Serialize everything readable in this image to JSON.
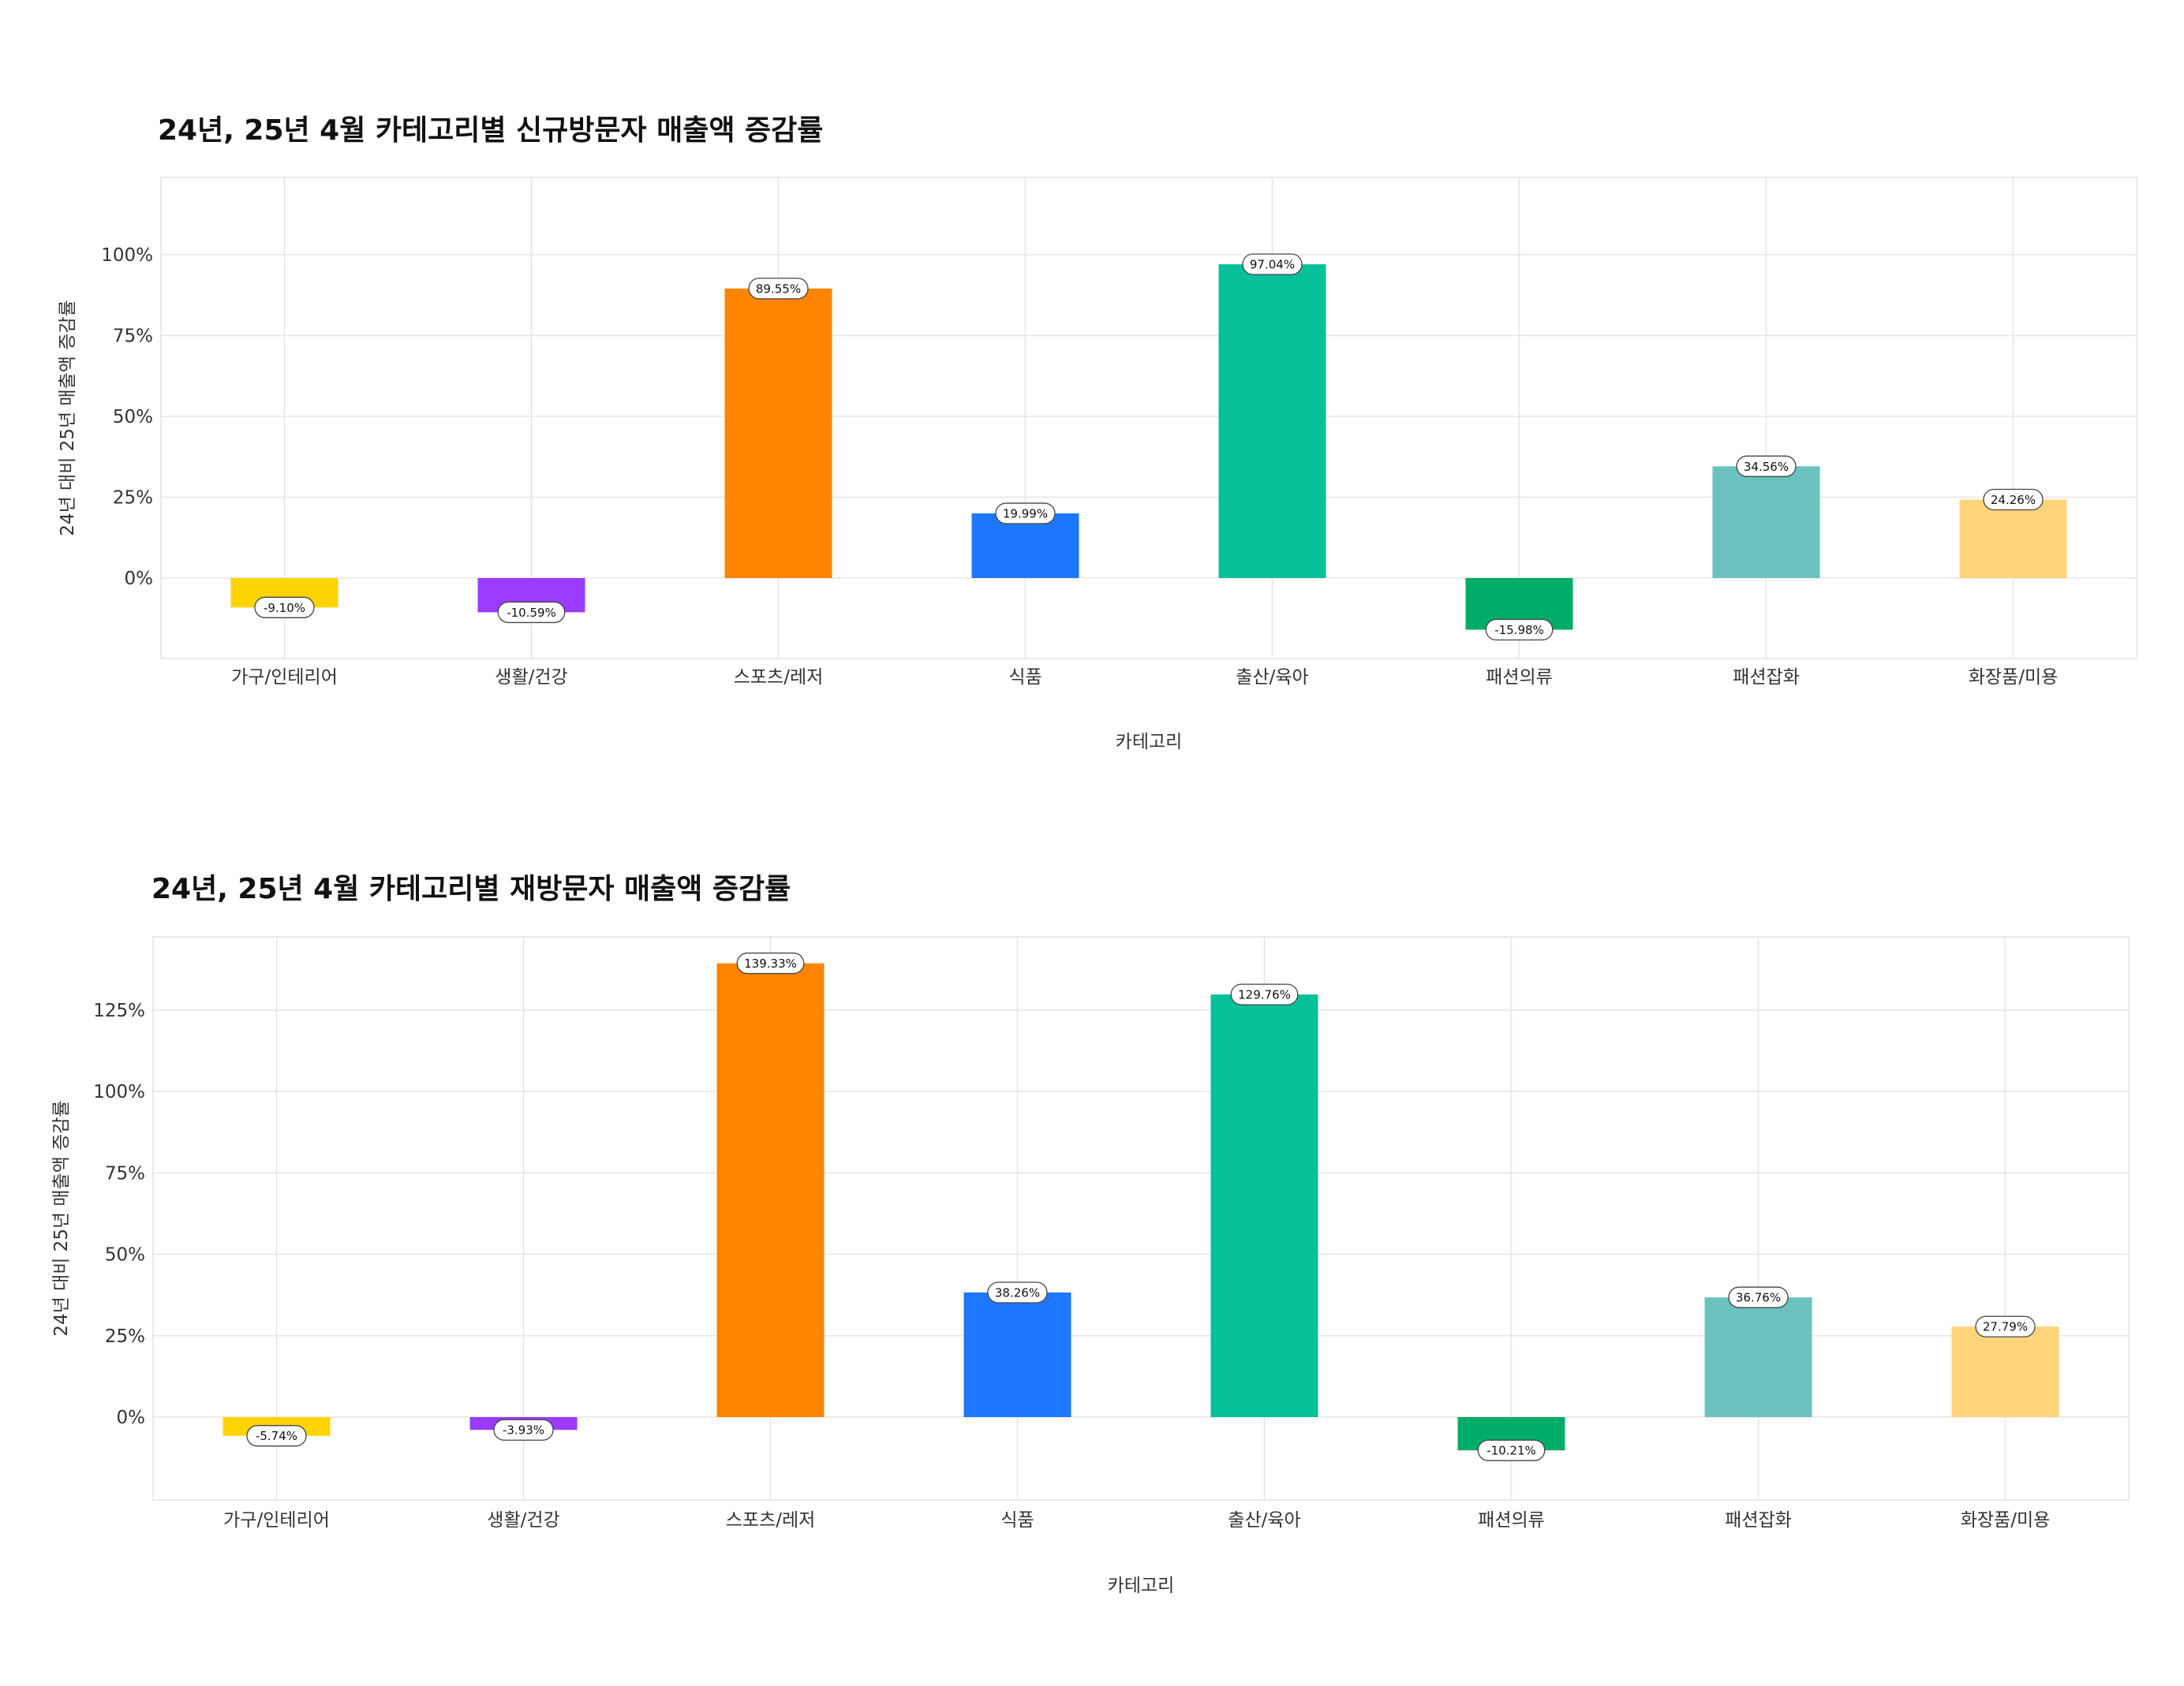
{
  "chart_data": [
    {
      "type": "bar",
      "title": "24년, 25년 4월 카테고리별 신규방문자 매출액 증감률",
      "xlabel": "카테고리",
      "ylabel": "24년 대비 25년 매출액 증감률",
      "categories": [
        "가구/인테리어",
        "생활/건강",
        "스포츠/레저",
        "식품",
        "출산/육아",
        "패션의류",
        "패션잡화",
        "화장품/미용"
      ],
      "values": [
        -9.1,
        -10.59,
        89.55,
        19.99,
        97.04,
        -15.98,
        34.56,
        24.26
      ],
      "data_labels": [
        "-9.10%",
        "-10.59%",
        "89.55%",
        "19.99%",
        "97.04%",
        "-15.98%",
        "34.56%",
        "24.26%"
      ],
      "colors": [
        "#FFD400",
        "#9A3BFF",
        "#FF8500",
        "#1E78FF",
        "#07C09A",
        "#00AD68",
        "#6CC2BE",
        "#FFD47A"
      ],
      "yticks": [
        0,
        25,
        50,
        75,
        100
      ],
      "ytick_labels": [
        "0%",
        "25%",
        "50%",
        "75%",
        "100%"
      ],
      "ylim": [
        -25,
        125
      ],
      "grid": true,
      "legend": "none"
    },
    {
      "type": "bar",
      "title": "24년, 25년 4월 카테고리별 재방문자 매출액 증감률",
      "xlabel": "카테고리",
      "ylabel": "24년 대비 25년 매출액 증감률",
      "categories": [
        "가구/인테리어",
        "생활/건강",
        "스포츠/레저",
        "식품",
        "출산/육아",
        "패션의류",
        "패션잡화",
        "화장품/미용"
      ],
      "values": [
        -5.74,
        -3.93,
        139.33,
        38.26,
        129.76,
        -10.21,
        36.76,
        27.79
      ],
      "data_labels": [
        "-5.74%",
        "-3.93%",
        "139.33%",
        "38.26%",
        "129.76%",
        "-10.21%",
        "36.76%",
        "27.79%"
      ],
      "colors": [
        "#FFD400",
        "#9A3BFF",
        "#FF8500",
        "#1E78FF",
        "#07C09A",
        "#00AD68",
        "#6CC2BE",
        "#FFD47A"
      ],
      "yticks": [
        0,
        25,
        50,
        75,
        100,
        125
      ],
      "ytick_labels": [
        "0%",
        "25%",
        "50%",
        "75%",
        "100%",
        "125%"
      ],
      "ylim": [
        -25,
        150
      ],
      "grid": true,
      "legend": "none"
    }
  ]
}
